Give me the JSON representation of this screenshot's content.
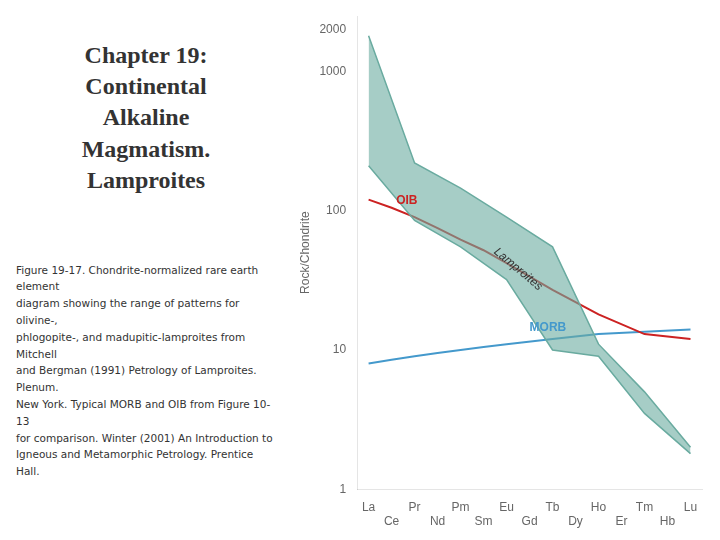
{
  "chart_data": {
    "type": "line",
    "title": "Chapter 19:\nContinental\nAlkaline\nMagmatism.\nLamproites",
    "caption": [
      "Figure 19-17.  Chondrite-normalized rare earth element",
      "diagram showing the range of patterns for olivine-,",
      "phlogopite-, and madupitic-lamproites from Mitchell",
      "and Bergman (1991) Petrology of Lamproites. Plenum.",
      "New York.  Typical MORB and OIB from Figure 10-13",
      "for comparison.  Winter (2001) An Introduction to",
      "Igneous and Metamorphic Petrology. Prentice Hall."
    ],
    "y_label": "Rock/Chondrite",
    "categories": [
      "La",
      "Ce",
      "Pr",
      "Nd",
      "Pm",
      "Sm",
      "Eu",
      "Gd",
      "Tb",
      "Dy",
      "Ho",
      "Er",
      "Tm",
      "Hb",
      "Lu"
    ],
    "series": [
      {
        "name": "Lamproites",
        "type": "area",
        "color": "#6aaba0",
        "upper": [
          1800,
          null,
          220,
          null,
          145,
          null,
          90,
          null,
          55,
          null,
          11,
          null,
          5,
          null,
          2.0
        ],
        "lower": [
          210,
          null,
          85,
          null,
          55,
          null,
          32,
          null,
          10,
          null,
          9,
          null,
          3.5,
          null,
          1.8
        ]
      },
      {
        "name": "OIB",
        "type": "line",
        "color": "#cc2222",
        "values": [
          120,
          105,
          90,
          75,
          62,
          52,
          42,
          null,
          27,
          null,
          18,
          null,
          13,
          null,
          12
        ]
      },
      {
        "name": "MORB",
        "type": "line",
        "color": "#4499cc",
        "values": [
          8,
          8.5,
          9,
          9.5,
          10,
          10.5,
          11,
          null,
          12,
          null,
          13,
          null,
          13.5,
          null,
          14
        ]
      }
    ],
    "annotations": [
      {
        "text": "Lamproites",
        "x": 6.5,
        "y": 38
      },
      {
        "text": "OIB",
        "x": 1.2,
        "y": 118
      },
      {
        "text": "MORB",
        "x": 7.0,
        "y": 14.5
      }
    ],
    "log": "y",
    "ylim": [
      1,
      2500
    ],
    "yticks": [
      1,
      10,
      100,
      1000,
      2000
    ],
    "grid": false
  }
}
